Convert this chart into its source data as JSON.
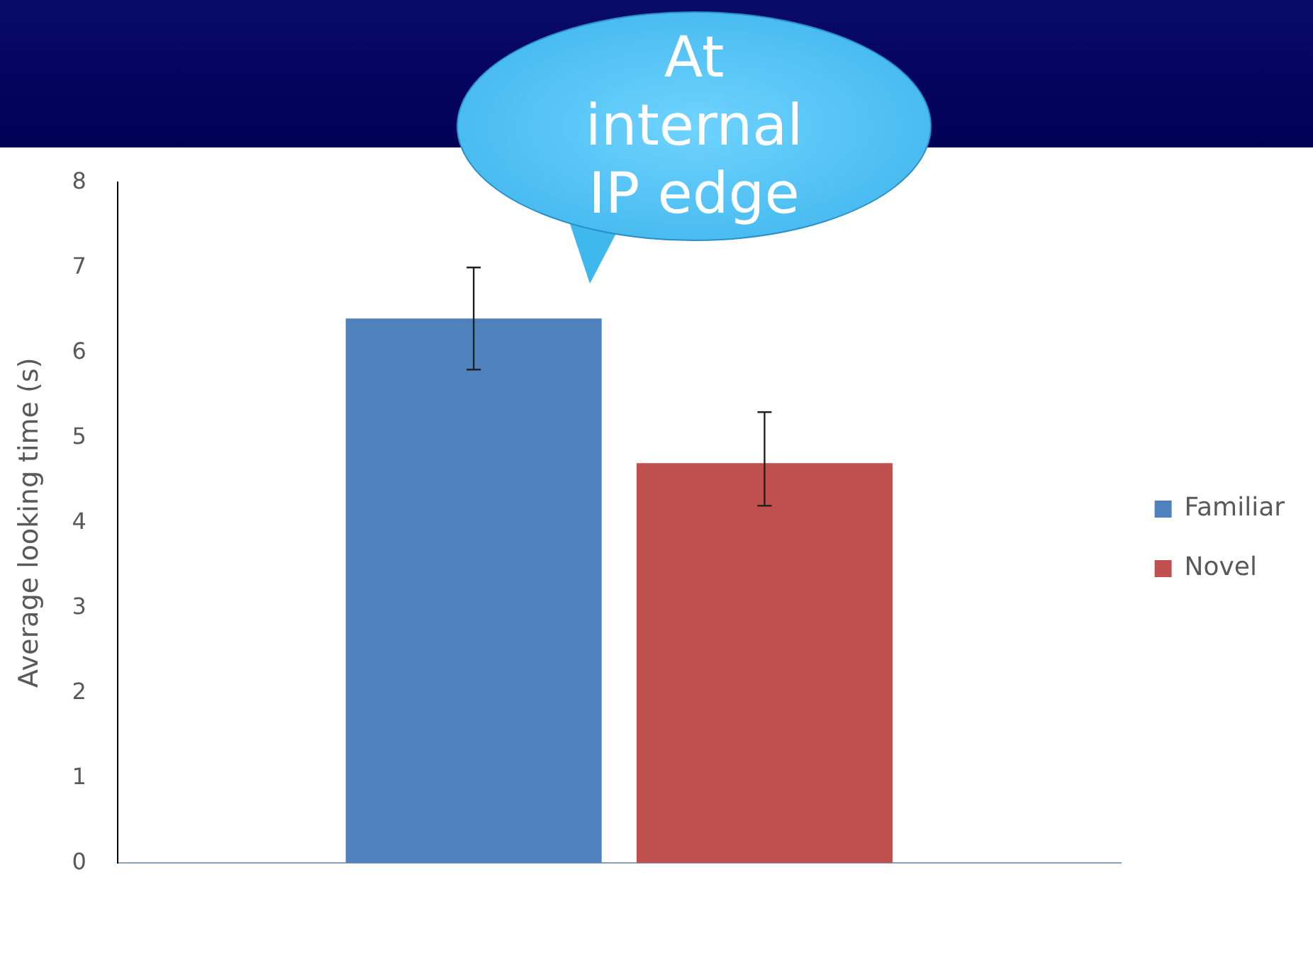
{
  "chart_data": {
    "type": "bar",
    "ylabel": "Average looking time (s)",
    "categories": [
      null
    ],
    "series": [
      {
        "name": "Familiar",
        "color": "#4f81bd",
        "values": [
          6.4
        ],
        "errors": [
          [
            5.8,
            7.0
          ]
        ]
      },
      {
        "name": "Novel",
        "color": "#c0504d",
        "values": [
          4.7
        ],
        "errors": [
          [
            4.2,
            5.3
          ]
        ]
      }
    ],
    "ylim": [
      0,
      8
    ],
    "yticks": [
      0,
      1,
      2,
      3,
      4,
      5,
      6,
      7,
      8
    ],
    "legend": "right",
    "annotations": [
      "At internal IP edge"
    ]
  }
}
